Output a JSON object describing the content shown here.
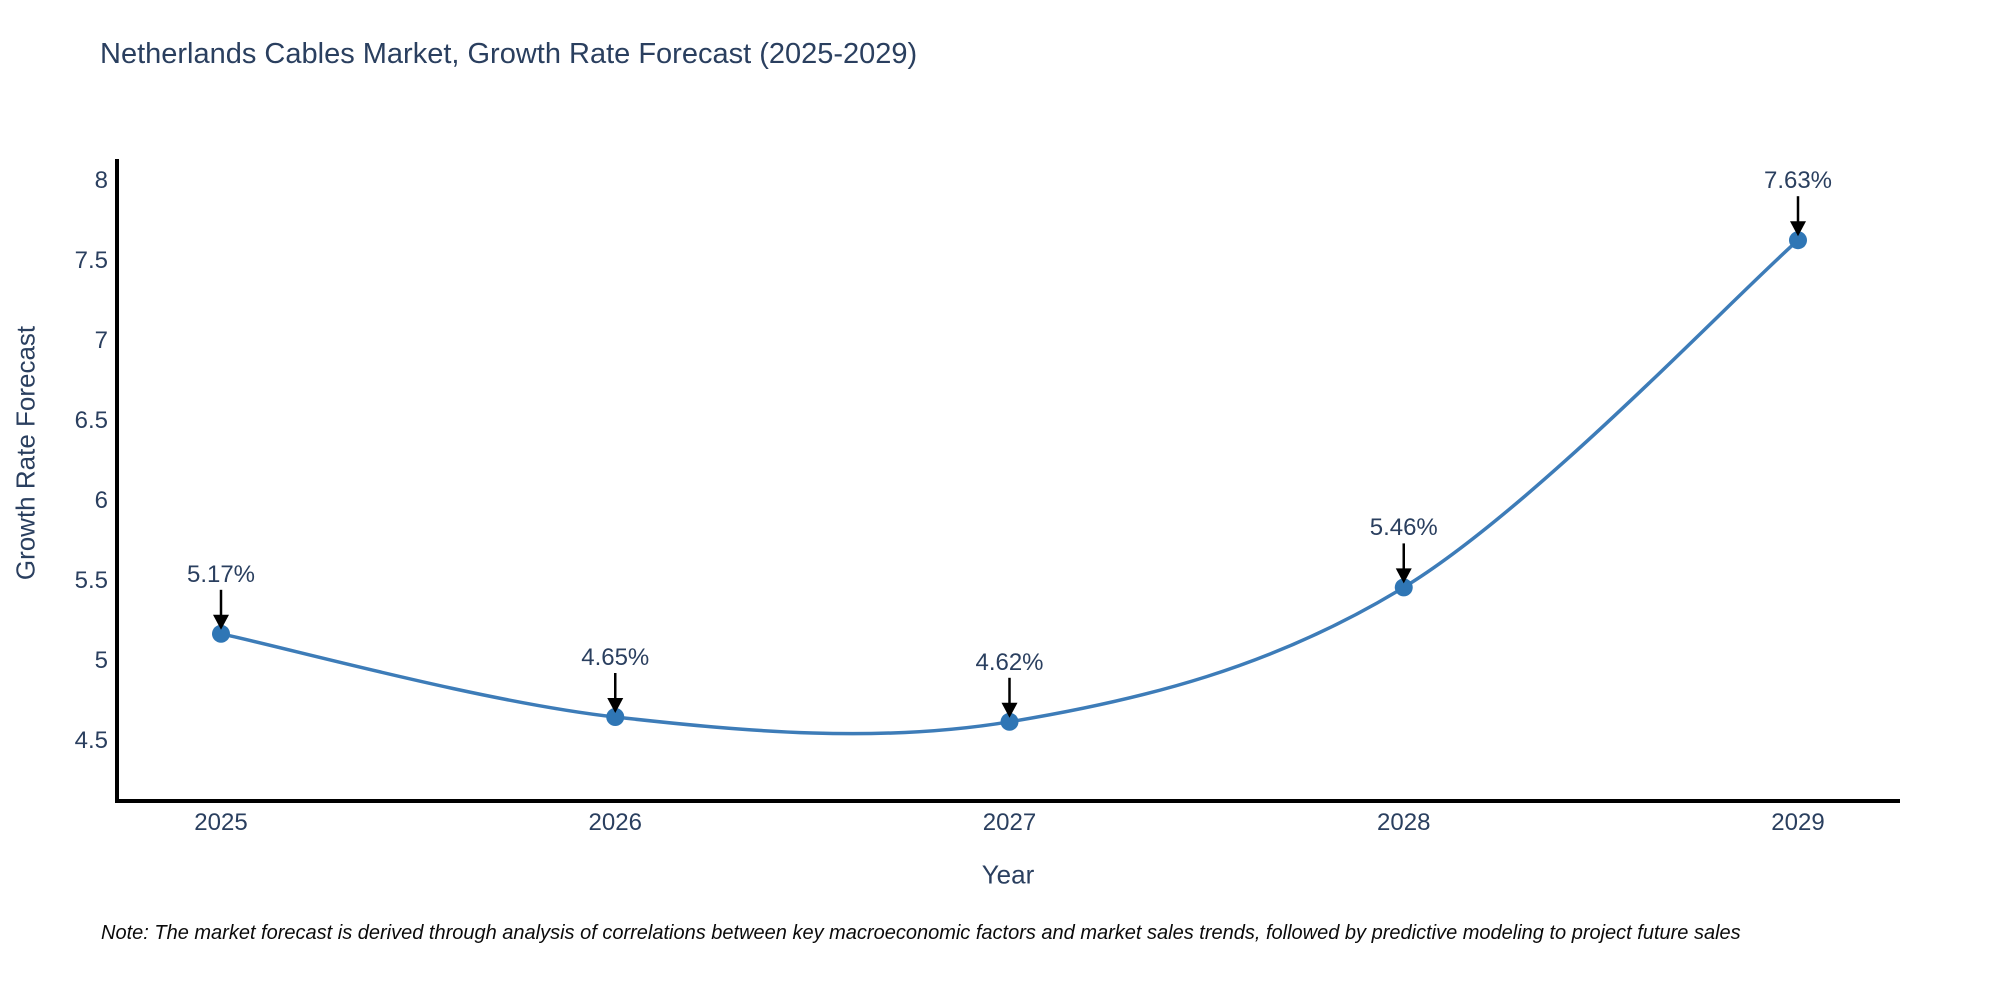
{
  "title": "Netherlands Cables Market, Growth Rate Forecast (2025-2029)",
  "note": "Note: The market forecast is derived through analysis of correlations between key macroeconomic factors and market sales trends, followed by predictive modeling to project future sales",
  "chart_data": {
    "type": "line",
    "title": "Netherlands Cables Market, Growth Rate Forecast (2025-2029)",
    "xlabel": "Year",
    "ylabel": "Growth Rate Forecast",
    "categories": [
      "2025",
      "2026",
      "2027",
      "2028",
      "2029"
    ],
    "series": [
      {
        "name": "Growth Rate Forecast",
        "values": [
          5.17,
          4.65,
          4.62,
          5.46,
          7.63
        ],
        "point_labels": [
          "5.17%",
          "4.65%",
          "4.62%",
          "5.46%",
          "7.63%"
        ]
      }
    ],
    "yticks": [
      4.5,
      5,
      5.5,
      6,
      6.5,
      7,
      7.5,
      8
    ],
    "ylim": [
      4.12,
      8.14
    ],
    "grid": false,
    "legend_position": "none",
    "line_shape": "spline",
    "annotation_arrows": true,
    "colors": {
      "line": "#3d7cb8",
      "marker": "#2f76b5",
      "axis_line": "#000000",
      "text": "#2a3f5f",
      "arrow": "#000000",
      "background": "#ffffff"
    }
  }
}
